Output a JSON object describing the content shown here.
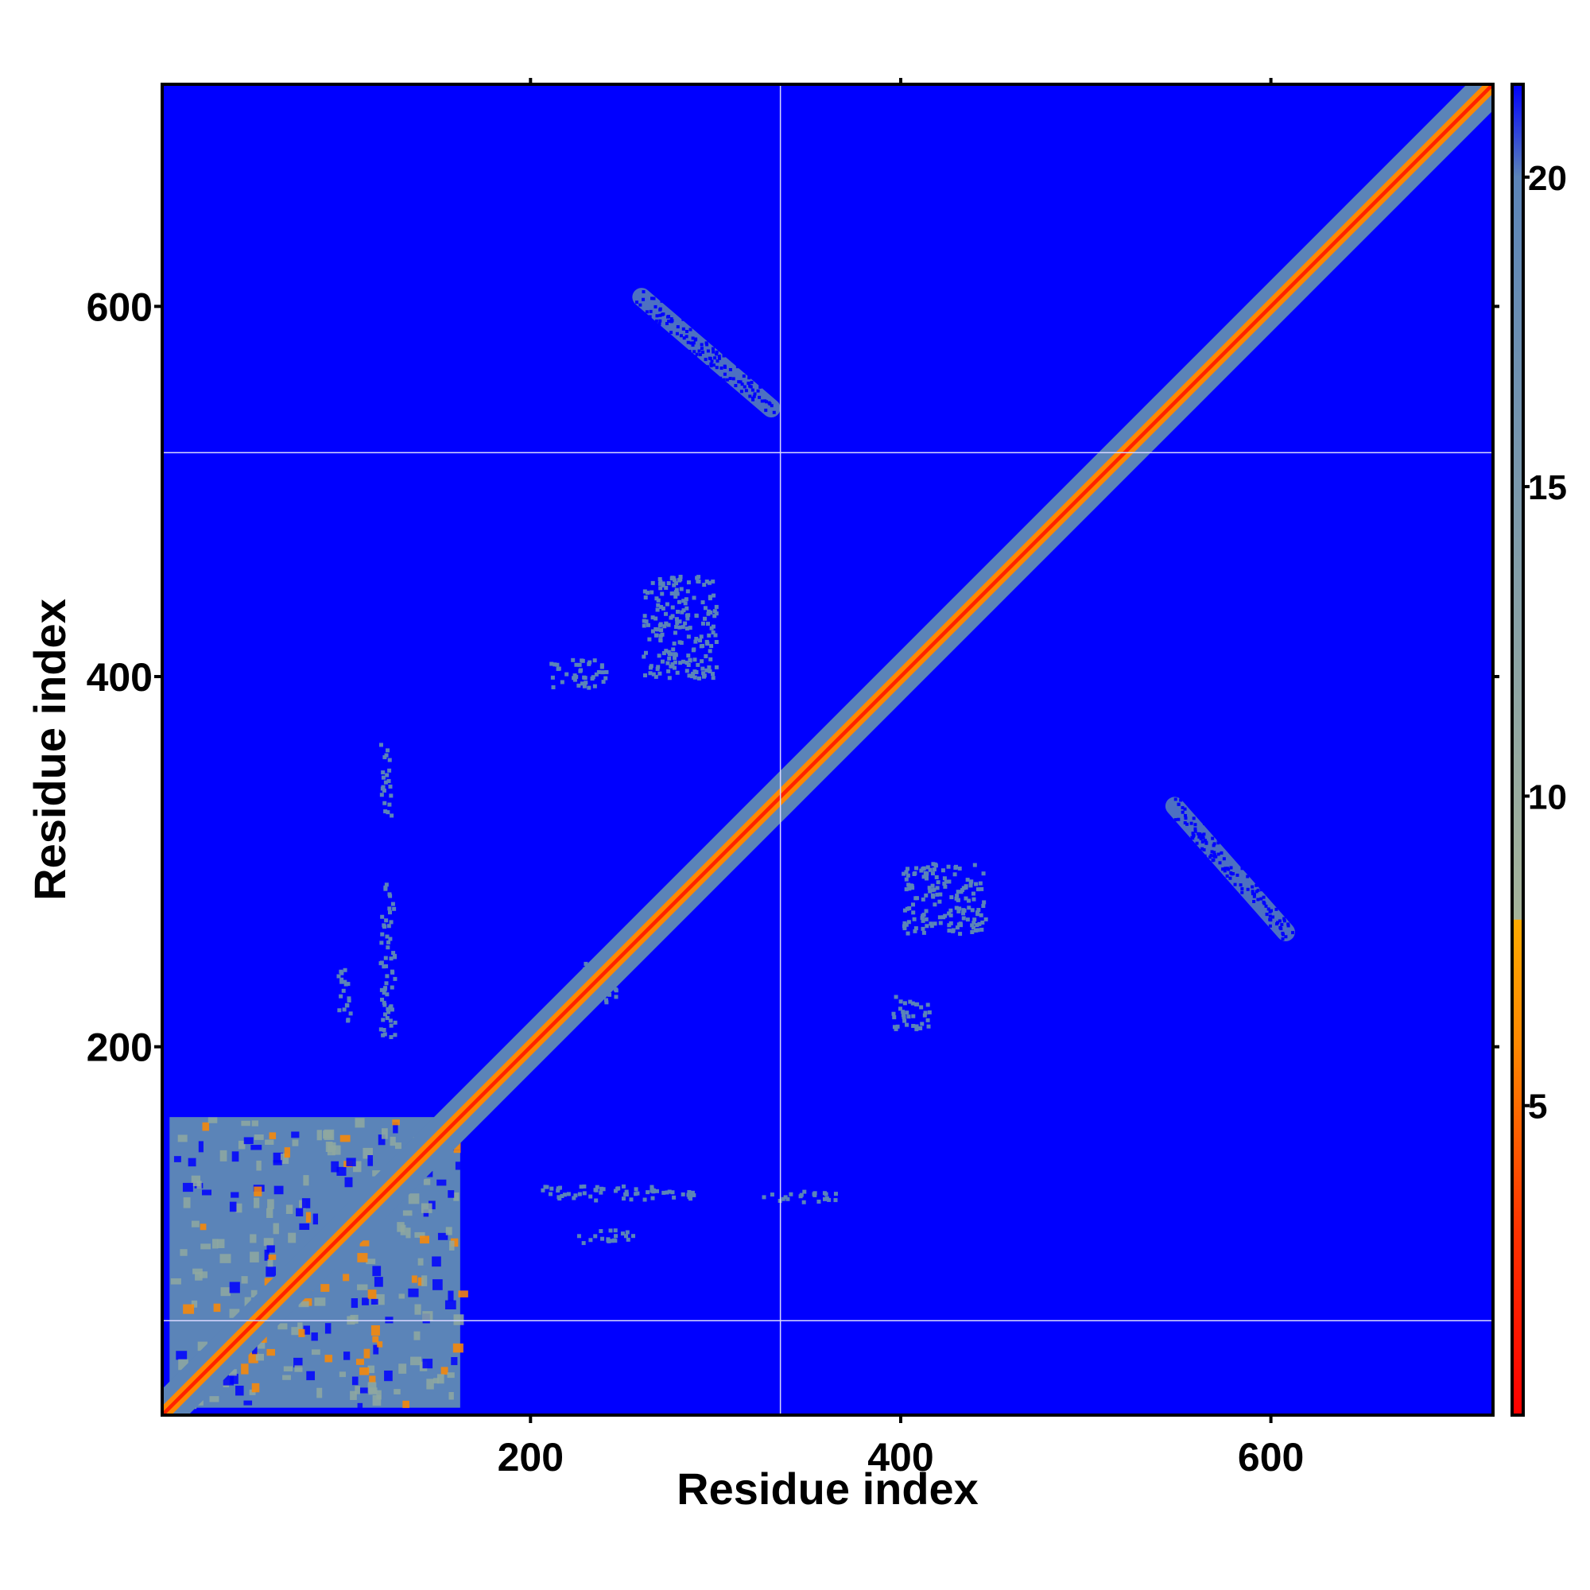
{
  "chart_data": {
    "type": "heatmap",
    "title": "",
    "xlabel": "Residue index",
    "ylabel": "Residue index",
    "xlim": [
      1,
      720
    ],
    "ylim": [
      1,
      720
    ],
    "x_ticks": [
      200,
      400,
      600
    ],
    "y_ticks": [
      200,
      400,
      600
    ],
    "colorbar": {
      "ticks": [
        5,
        10,
        15,
        20
      ],
      "range": [
        0,
        21.5
      ],
      "stops": [
        {
          "value": 0,
          "color": "#ff0000"
        },
        {
          "value": 3,
          "color": "#ff3300"
        },
        {
          "value": 6,
          "color": "#ff8800"
        },
        {
          "value": 8,
          "color": "#ffaa00"
        },
        {
          "value": 8.01,
          "color": "#a6b49a"
        },
        {
          "value": 20,
          "color": "#5b84b8"
        },
        {
          "value": 21.5,
          "color": "#0000ff"
        }
      ]
    },
    "colors": {
      "background": "#0000ff",
      "contact": "#5b84b8",
      "near": "#8fa8a0",
      "close": "#ff8800",
      "diagonal": "#ff2200",
      "separator": "#d8d8ff"
    },
    "separators": {
      "x": [
        335
      ],
      "y": [
        52,
        521
      ]
    },
    "diagonal_band": {
      "from": 1,
      "to": 720,
      "outer_width": 20,
      "inner_width": 7,
      "core_width": 2
    },
    "contact_blocks": [
      {
        "x": [
          5,
          162
        ],
        "y": [
          5,
          162
        ]
      }
    ],
    "contact_patches": [
      {
        "x0": 260,
        "y0": 605,
        "x1": 330,
        "y1": 545,
        "thickness": 10
      },
      {
        "x0": 548,
        "y0": 330,
        "x1": 608,
        "y1": 262,
        "thickness": 10
      },
      {
        "x": [
          260,
          300
        ],
        "y": [
          400,
          455
        ]
      },
      {
        "x": [
          400,
          445
        ],
        "y": [
          262,
          300
        ]
      },
      {
        "x": [
          210,
          240
        ],
        "y": [
          395,
          410
        ]
      },
      {
        "x": [
          395,
          415
        ],
        "y": [
          210,
          228
        ]
      },
      {
        "x": [
          205,
          290
        ],
        "y": [
          118,
          126
        ]
      },
      {
        "x": [
          225,
          255
        ],
        "y": [
          95,
          102
        ]
      },
      {
        "x": [
          325,
          365
        ],
        "y": [
          117,
          123
        ]
      },
      {
        "x": [
          118,
          126
        ],
        "y": [
          205,
          290
        ]
      },
      {
        "x": [
          118,
          124
        ],
        "y": [
          325,
          365
        ]
      },
      {
        "x": [
          95,
          102
        ],
        "y": [
          215,
          245
        ]
      },
      {
        "x": [
          228,
          248
        ],
        "y": [
          225,
          248
        ]
      }
    ]
  }
}
